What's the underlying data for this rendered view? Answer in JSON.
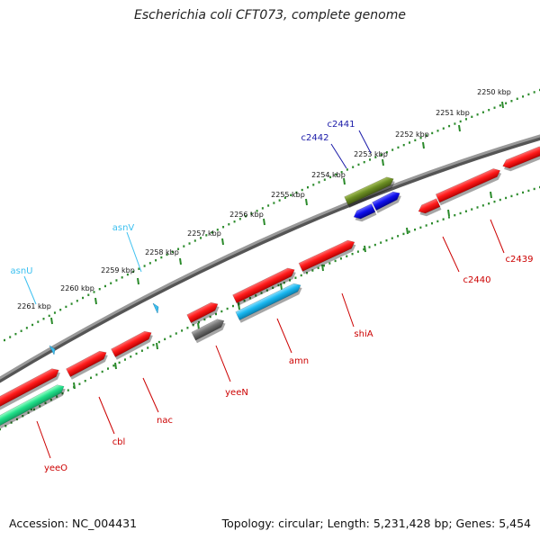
{
  "title": "Escherichia coli CFT073, complete genome",
  "footer": {
    "accession": "Accession: NC_004431",
    "summary": "Topology: circular; Length: 5,231,428 bp; Genes: 5,454"
  },
  "colors": {
    "backbone": "#888888",
    "ruler": "#2a8a2a",
    "gene_red": "#ff1a1a",
    "gene_blue": "#1010ee",
    "gene_olive": "#6b8e23",
    "gene_cyan": "#1ab8f0",
    "gene_green": "#22e08a",
    "gene_gray": "#707070",
    "trna": "#3cc0f0",
    "label_red": "#cc0000",
    "label_blue": "#1a1aa8",
    "label_cyan": "#3cc0f0"
  },
  "ruler": {
    "ticks": [
      "2250 kbp",
      "2251 kbp",
      "2252 kbp",
      "2253 kbp",
      "2254 kbp",
      "2255 kbp",
      "2256 kbp",
      "2257 kbp",
      "2258 kbp",
      "2259 kbp",
      "2260 kbp",
      "2261 kbp"
    ]
  },
  "trna_labels": [
    "asnV",
    "asnU"
  ],
  "gene_labels_outer": [
    "c2441",
    "c2442"
  ],
  "gene_labels_inner": [
    "c2439",
    "c2440",
    "shiA",
    "amn",
    "yeeN",
    "nac",
    "cbl",
    "yeeO"
  ]
}
